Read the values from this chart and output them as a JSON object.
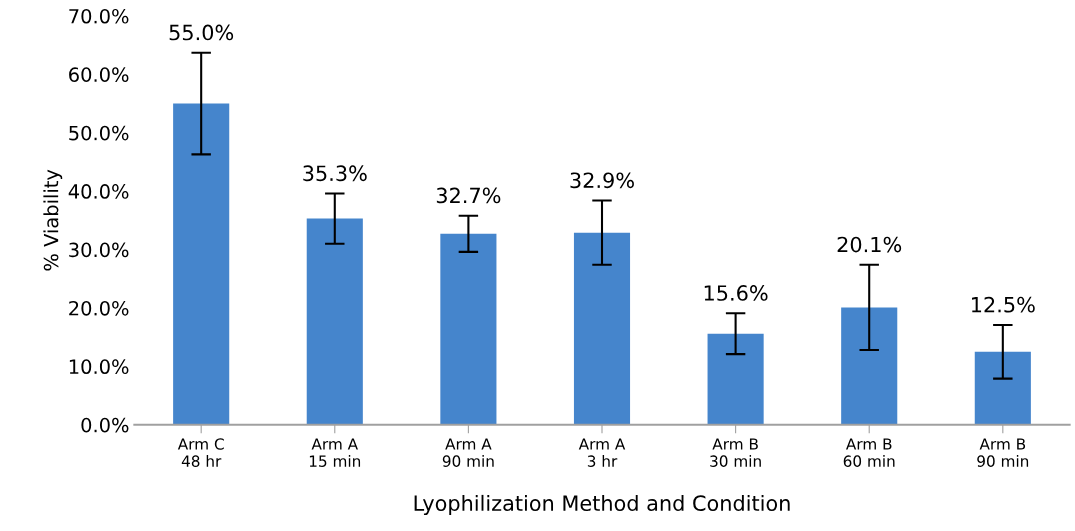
{
  "chart_data": {
    "type": "bar",
    "categories": [
      "Arm C\n48 hr",
      "Arm A\n15 min",
      "Arm A\n90 min",
      "Arm A\n3 hr",
      "Arm B\n30 min",
      "Arm B\n60 min",
      "Arm B\n90 min"
    ],
    "values": [
      55.0,
      35.3,
      32.7,
      32.9,
      15.6,
      20.1,
      12.5
    ],
    "errors": [
      8.7,
      4.3,
      3.1,
      5.5,
      3.5,
      7.3,
      4.6
    ],
    "value_labels": [
      "55.0%",
      "35.3%",
      "32.7%",
      "32.9%",
      "15.6%",
      "20.1%",
      "12.5%"
    ],
    "color": "#4585cc",
    "xlabel": "Lyophilization Method and Condition",
    "ylabel": "% Viability",
    "ylim": [
      0,
      70
    ],
    "yticks": [
      {
        "value": 0,
        "label": "0.0%"
      },
      {
        "value": 10,
        "label": "10.0%"
      },
      {
        "value": 20,
        "label": "20.0%"
      },
      {
        "value": 30,
        "label": "30.0%"
      },
      {
        "value": 40,
        "label": "40.0%"
      },
      {
        "value": 50,
        "label": "50.0%"
      },
      {
        "value": 60,
        "label": "60.0%"
      },
      {
        "value": 70,
        "label": "70.0%"
      }
    ],
    "grid": false,
    "legend": false
  }
}
